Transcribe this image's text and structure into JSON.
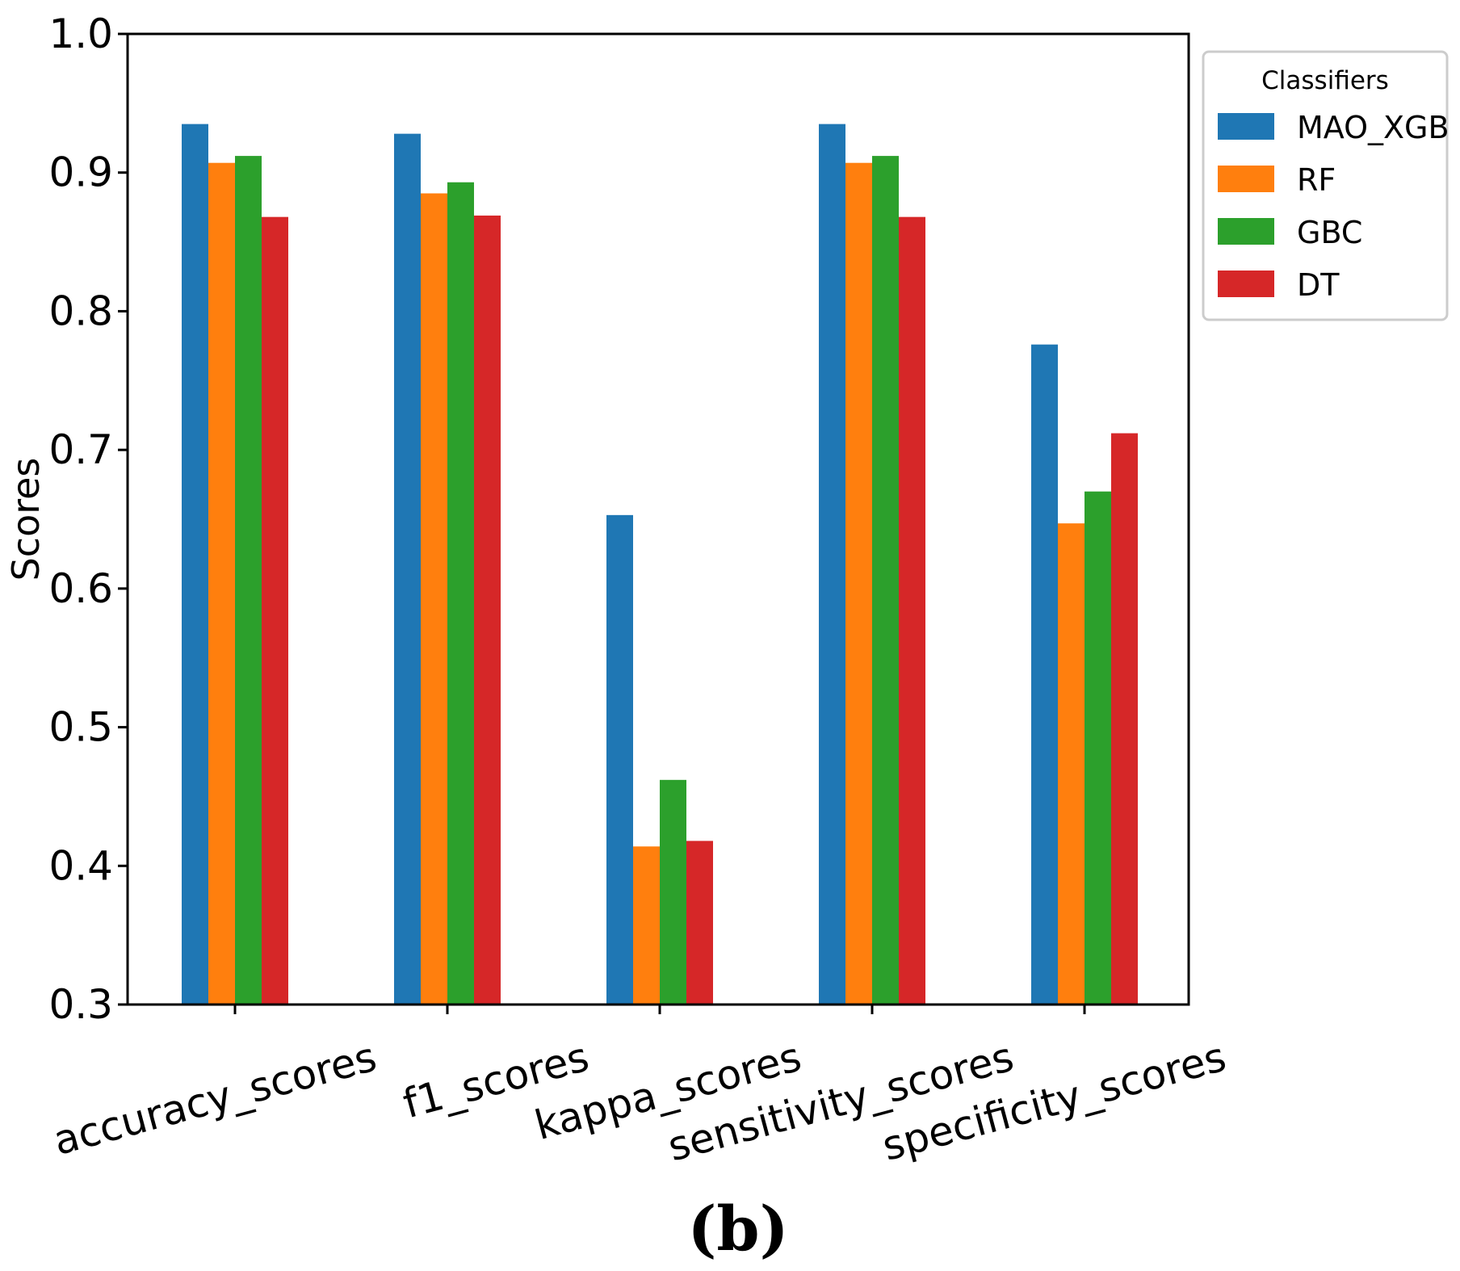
{
  "chart_data": {
    "type": "bar",
    "title": "",
    "xlabel": "",
    "ylabel": "Scores",
    "ylim": [
      0.3,
      1.0
    ],
    "yticks": [
      "0.3",
      "0.4",
      "0.5",
      "0.6",
      "0.7",
      "0.8",
      "0.9",
      "1.0"
    ],
    "categories": [
      "accuracy_scores",
      "f1_scores",
      "kappa_scores",
      "sensitivity_scores",
      "specificity_scores"
    ],
    "series": [
      {
        "name": "MAO_XGB",
        "color": "#1f77b4",
        "values": [
          0.935,
          0.928,
          0.653,
          0.935,
          0.776
        ]
      },
      {
        "name": "RF",
        "color": "#ff7f0e",
        "values": [
          0.907,
          0.885,
          0.414,
          0.907,
          0.647
        ]
      },
      {
        "name": "GBC",
        "color": "#2ca02c",
        "values": [
          0.912,
          0.893,
          0.462,
          0.912,
          0.67
        ]
      },
      {
        "name": "DT",
        "color": "#d62728",
        "values": [
          0.868,
          0.869,
          0.418,
          0.868,
          0.712
        ]
      }
    ],
    "legend": {
      "title": "Classifiers",
      "position": "outside-top-right"
    },
    "panel_label": "(b)"
  }
}
